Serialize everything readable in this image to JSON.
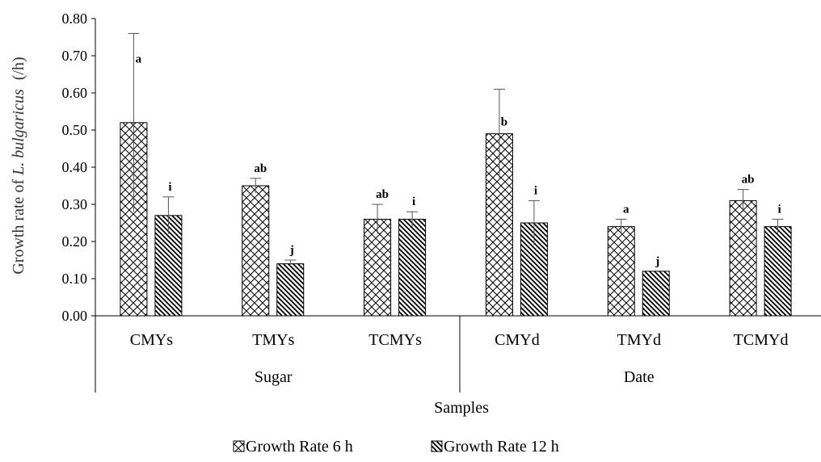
{
  "chart_data": {
    "type": "bar",
    "xlabel": "Samples",
    "ylabel_prefix": "Growth rate of",
    "ylabel_species": "L. bulgaricus",
    "ylabel_unit": "(/h)",
    "ylim": [
      0,
      0.8
    ],
    "yticks": [
      "0.00",
      "0.10",
      "0.20",
      "0.30",
      "0.40",
      "0.50",
      "0.60",
      "0.70",
      "0.80"
    ],
    "categories": [
      "CMYs",
      "TMYs",
      "TCMYs",
      "CMYd",
      "TMYd",
      "TCMYd"
    ],
    "groups": [
      {
        "label": "Sugar",
        "categories": [
          "CMYs",
          "TMYs",
          "TCMYs"
        ]
      },
      {
        "label": "Date",
        "categories": [
          "CMYd",
          "TMYd",
          "TCMYd"
        ]
      }
    ],
    "series": [
      {
        "name": "Growth Rate 6 h",
        "pattern": "crosshatch",
        "values": [
          0.52,
          0.35,
          0.26,
          0.49,
          0.24,
          0.31
        ],
        "errors": [
          0.24,
          0.02,
          0.04,
          0.12,
          0.02,
          0.03
        ],
        "labels": [
          "a",
          "ab",
          "ab",
          "b",
          "a",
          "ab"
        ]
      },
      {
        "name": "Growth Rate 12 h",
        "pattern": "diagonal",
        "values": [
          0.27,
          0.14,
          0.26,
          0.25,
          0.12,
          0.24
        ],
        "errors": [
          0.05,
          0.01,
          0.02,
          0.06,
          0.0,
          0.02
        ],
        "labels": [
          "i",
          "j",
          "i",
          "i",
          "j",
          "i"
        ]
      }
    ],
    "legend_position": "bottom",
    "grid": false
  }
}
